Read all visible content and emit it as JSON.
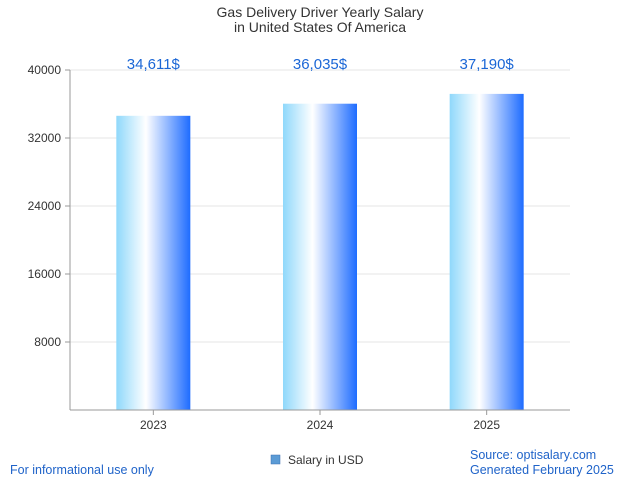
{
  "chart_data": {
    "type": "bar",
    "title": "Gas Delivery Driver Yearly Salary",
    "subtitle": "in United States Of America",
    "categories": [
      "2023",
      "2024",
      "2025"
    ],
    "series": [
      {
        "name": "Salary in USD",
        "values": [
          34611,
          36035,
          37190
        ],
        "labels": [
          "34,611$",
          "36,035$",
          "37,190$"
        ]
      }
    ],
    "yticks": [
      "8000",
      "16000",
      "24000",
      "32000",
      "40000"
    ],
    "ylim": [
      0,
      40000
    ],
    "grid": true,
    "legend_position": "bottom"
  },
  "footer": {
    "disclaimer": "For informational use only",
    "source": "Source: optisalary.com",
    "generated": "Generated February 2025"
  },
  "colors": {
    "bar_light": "#8fd8fb",
    "bar_white": "#ffffff",
    "bar_dark": "#1e6cff",
    "value_label": "#1a66d6",
    "footer_text": "#1f63c9",
    "grid": "#e6e6e6",
    "axis": "#999999",
    "legend_swatch": "#5b9bd5"
  }
}
